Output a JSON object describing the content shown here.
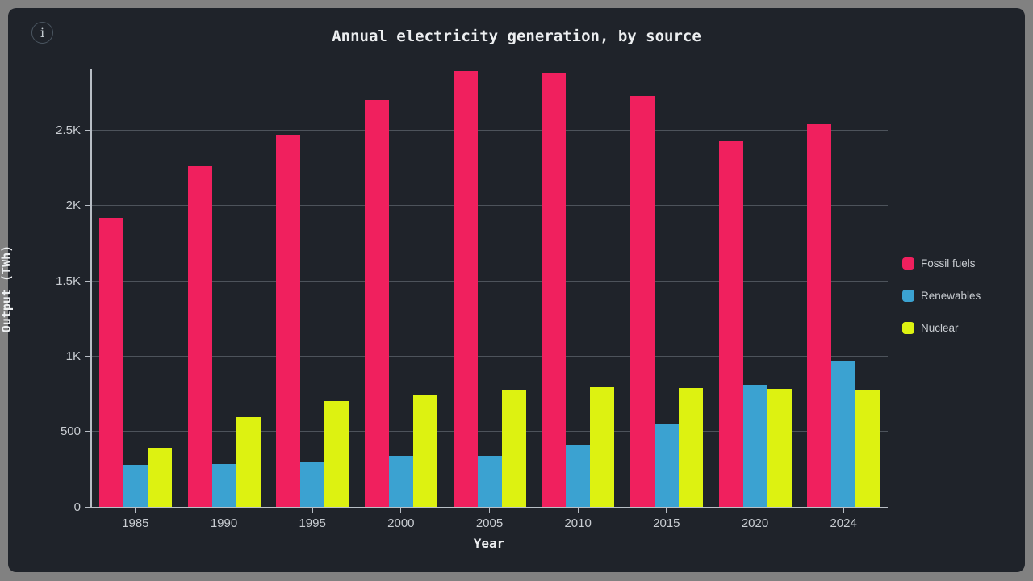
{
  "window": {
    "info_icon_glyph": "i"
  },
  "chart_data": {
    "type": "bar",
    "title": "Annual electricity generation, by source",
    "xlabel": "Year",
    "ylabel": "Output (TWh)",
    "categories": [
      "1985",
      "1990",
      "1995",
      "2000",
      "2005",
      "2010",
      "2015",
      "2020",
      "2024"
    ],
    "series": [
      {
        "name": "Fossil fuels",
        "color": "#F0205E",
        "values": [
          1920,
          2260,
          2470,
          2700,
          2895,
          2885,
          2730,
          2430,
          2540
        ]
      },
      {
        "name": "Renewables",
        "color": "#3BA2D1",
        "values": [
          280,
          285,
          300,
          335,
          340,
          410,
          545,
          810,
          970
        ]
      },
      {
        "name": "Nuclear",
        "color": "#DDF211",
        "values": [
          390,
          595,
          700,
          745,
          775,
          800,
          790,
          780,
          775
        ]
      }
    ],
    "ylim": [
      0,
      2910
    ],
    "yticks": [
      {
        "value": 0,
        "label": "0"
      },
      {
        "value": 500,
        "label": "500"
      },
      {
        "value": 1000,
        "label": "1K"
      },
      {
        "value": 1500,
        "label": "1.5K"
      },
      {
        "value": 2000,
        "label": "2K"
      },
      {
        "value": 2500,
        "label": "2.5K"
      }
    ],
    "grid": true,
    "legend_position": "right"
  }
}
